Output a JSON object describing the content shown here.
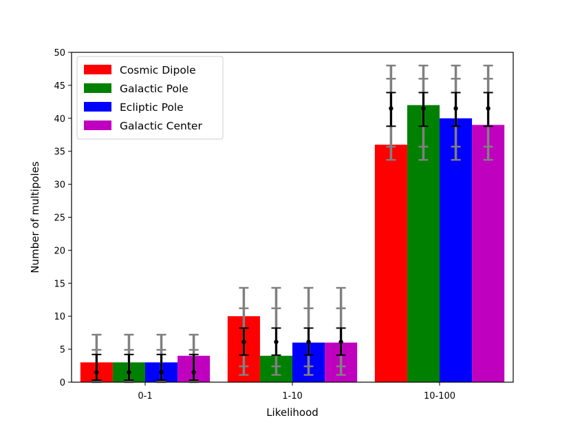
{
  "chart_data": {
    "type": "bar",
    "xlabel": "Likelihood",
    "ylabel": "Number of multipoles",
    "ylim": [
      0,
      50
    ],
    "yticks": [
      0,
      5,
      10,
      15,
      20,
      25,
      30,
      35,
      40,
      45,
      50
    ],
    "categories": [
      "0-1",
      "1-10",
      "10-100"
    ],
    "series": [
      {
        "name": "Cosmic Dipole",
        "color": "#ff0000",
        "values": [
          3,
          10,
          36
        ]
      },
      {
        "name": "Galactic Pole",
        "color": "#008000",
        "values": [
          3,
          4,
          42
        ]
      },
      {
        "name": "Ecliptic Pole",
        "color": "#0000ff",
        "values": [
          3,
          6,
          40
        ]
      },
      {
        "name": "Galactic Center",
        "color": "#bf00bf",
        "values": [
          4,
          6,
          39
        ]
      }
    ],
    "expected": {
      "mean": [
        1.5,
        6.1,
        41.5
      ],
      "sigma1": [
        [
          0.3,
          4.2
        ],
        [
          4.1,
          8.2
        ],
        [
          38.8,
          43.9
        ]
      ],
      "sigma2": [
        [
          0.1,
          4.9
        ],
        [
          2.4,
          11.2
        ],
        [
          35.7,
          46.0
        ]
      ],
      "sigma3": [
        [
          0,
          7.2
        ],
        [
          1.1,
          14.3
        ],
        [
          33.7,
          48.0
        ]
      ]
    },
    "legend": {
      "location": "top-left"
    }
  }
}
